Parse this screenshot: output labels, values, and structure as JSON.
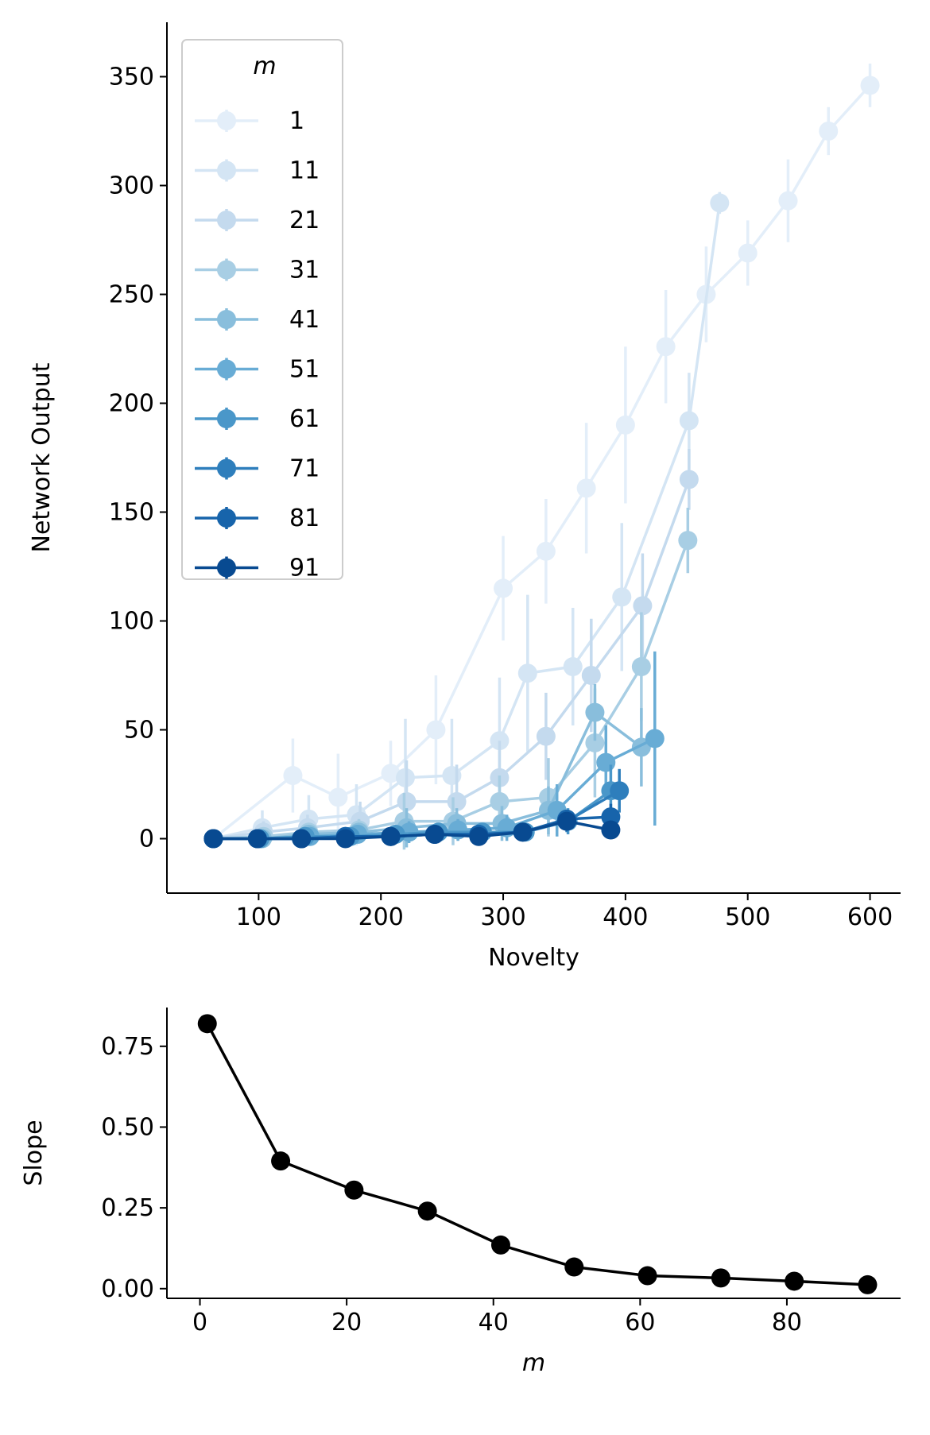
{
  "chart_data": [
    {
      "type": "line",
      "xlabel": "Novelty",
      "ylabel": "Network Output",
      "xlim": [
        25,
        625
      ],
      "ylim": [
        -25,
        375
      ],
      "xticks": [
        100,
        200,
        300,
        400,
        500,
        600
      ],
      "yticks": [
        0,
        50,
        100,
        150,
        200,
        250,
        300,
        350
      ],
      "error_bars": true,
      "legend": {
        "title": "m",
        "placement": "top-left",
        "labels": [
          "1",
          "11",
          "21",
          "31",
          "41",
          "51",
          "61",
          "71",
          "81",
          "91"
        ]
      },
      "series": [
        {
          "name": "1",
          "color": "#e3eef9",
          "x": [
            63,
            128,
            165,
            208,
            245,
            300,
            335,
            368,
            400,
            433,
            466,
            500,
            533,
            566,
            600
          ],
          "y": [
            0,
            29,
            19,
            30,
            50,
            115,
            132,
            161,
            190,
            226,
            250,
            269,
            293,
            325,
            346
          ],
          "err": [
            2,
            17,
            20,
            15,
            25,
            24,
            24,
            30,
            36,
            26,
            22,
            15,
            19,
            11,
            10
          ]
        },
        {
          "name": "11",
          "color": "#d4e5f4",
          "x": [
            63,
            103,
            141,
            180,
            220,
            258,
            297,
            320,
            357,
            397,
            452,
            477
          ],
          "y": [
            0,
            5,
            9,
            11,
            28,
            29,
            45,
            76,
            79,
            111,
            192,
            292
          ],
          "err": [
            2,
            8,
            11,
            14,
            27,
            26,
            29,
            36,
            27,
            34,
            22,
            5
          ]
        },
        {
          "name": "21",
          "color": "#c4daee",
          "x": [
            63,
            104,
            140,
            183,
            221,
            262,
            297,
            335,
            372,
            414,
            452
          ],
          "y": [
            0,
            3,
            5,
            8,
            17,
            17,
            28,
            47,
            75,
            107,
            165
          ],
          "err": [
            1,
            5,
            6,
            9,
            19,
            17,
            17,
            20,
            26,
            24,
            14
          ]
        },
        {
          "name": "31",
          "color": "#a8cee4",
          "x": [
            63,
            104,
            141,
            182,
            219,
            259,
            297,
            337,
            375,
            413,
            451
          ],
          "y": [
            0,
            1,
            3,
            4,
            8,
            8,
            17,
            19,
            44,
            79,
            137
          ],
          "err": [
            1,
            3,
            4,
            5,
            13,
            11,
            12,
            18,
            25,
            25,
            15
          ]
        },
        {
          "name": "41",
          "color": "#89bedc",
          "x": [
            63,
            103,
            141,
            182,
            221,
            262,
            299,
            337,
            375,
            413
          ],
          "y": [
            0,
            0,
            2,
            3,
            5,
            7,
            7,
            13,
            58,
            42
          ],
          "err": [
            1,
            2,
            3,
            4,
            9,
            7,
            8,
            11,
            13,
            18
          ]
        },
        {
          "name": "51",
          "color": "#68acd5",
          "x": [
            63,
            101,
            142,
            181,
            223,
            263,
            303,
            344,
            384,
            424
          ],
          "y": [
            0,
            0,
            1,
            2,
            3,
            4,
            5,
            13,
            35,
            46
          ],
          "err": [
            1,
            1,
            2,
            3,
            5,
            5,
            6,
            12,
            17,
            40
          ]
        },
        {
          "name": "61",
          "color": "#4a97c9",
          "x": [
            63,
            101,
            138,
            175,
            212,
            247,
            283,
            318,
            353,
            388
          ],
          "y": [
            0,
            0,
            1,
            1,
            2,
            3,
            3,
            3,
            8,
            22
          ],
          "err": [
            1,
            1,
            1,
            2,
            2,
            3,
            3,
            3,
            6,
            12
          ]
        },
        {
          "name": "71",
          "color": "#2e7ebc",
          "x": [
            63,
            99,
            135,
            171,
            208,
            244,
            280,
            316,
            352,
            395
          ],
          "y": [
            0,
            0,
            0,
            1,
            1,
            2,
            2,
            3,
            8,
            22
          ],
          "err": [
            1,
            1,
            1,
            1,
            2,
            2,
            2,
            3,
            5,
            10
          ]
        },
        {
          "name": "81",
          "color": "#1764ab",
          "x": [
            63,
            99,
            135,
            171,
            208,
            244,
            280,
            316,
            352,
            388
          ],
          "y": [
            0,
            0,
            0,
            1,
            1,
            2,
            2,
            3,
            9,
            10
          ],
          "err": [
            1,
            1,
            1,
            1,
            1,
            2,
            2,
            2,
            4,
            6
          ]
        },
        {
          "name": "91",
          "color": "#084a91",
          "x": [
            63,
            99,
            135,
            171,
            208,
            244,
            280,
            316,
            352,
            388
          ],
          "y": [
            0,
            0,
            0,
            0,
            1,
            2,
            1,
            3,
            8,
            4
          ],
          "err": [
            1,
            1,
            1,
            1,
            1,
            2,
            2,
            2,
            4,
            4
          ]
        }
      ]
    },
    {
      "type": "line",
      "xlabel": "m",
      "ylabel": "Slope",
      "xlim": [
        -4.5,
        95.5
      ],
      "ylim": [
        -0.03,
        0.87
      ],
      "xticks": [
        0,
        20,
        40,
        60,
        80
      ],
      "yticks": [
        "0.00",
        "0.25",
        "0.50",
        "0.75"
      ],
      "series": [
        {
          "color": "#000000",
          "x": [
            1,
            11,
            21,
            31,
            41,
            51,
            61,
            71,
            81,
            91
          ],
          "y": [
            0.82,
            0.395,
            0.305,
            0.24,
            0.135,
            0.067,
            0.04,
            0.033,
            0.023,
            0.012
          ]
        }
      ]
    }
  ]
}
